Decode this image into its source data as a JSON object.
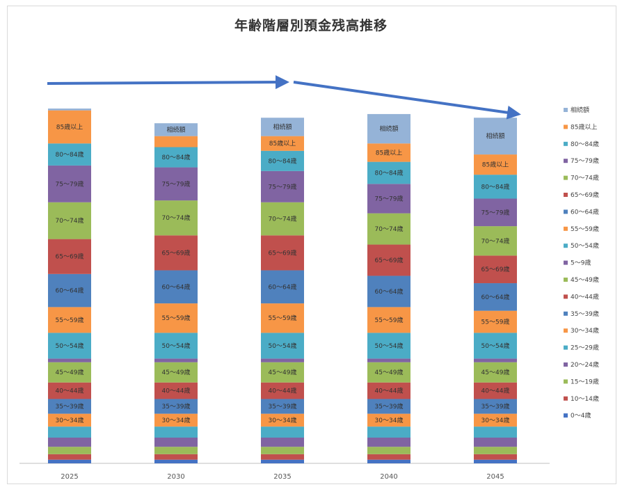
{
  "chart_data": {
    "type": "bar",
    "stacked": true,
    "title": "年齢階層別預金残高推移",
    "xlabel": "",
    "ylabel": "",
    "categories": [
      "2025",
      "2030",
      "2035",
      "2040",
      "2045"
    ],
    "grid": false,
    "legend_position": "right",
    "series": [
      {
        "name": "0～4歳",
        "color": "#4472c4",
        "values": [
          2,
          2,
          2,
          2,
          2
        ]
      },
      {
        "name": "10～14歳",
        "color": "#c0504d",
        "values": [
          3,
          3,
          3,
          3,
          3
        ]
      },
      {
        "name": "15～19歳",
        "color": "#9bbb59",
        "values": [
          4,
          4,
          4,
          4,
          4
        ]
      },
      {
        "name": "20～24歳",
        "color": "#8064a2",
        "values": [
          5,
          5,
          5,
          5,
          5
        ]
      },
      {
        "name": "25～29歳",
        "color": "#4bacc6",
        "values": [
          6,
          6,
          6,
          6,
          6
        ]
      },
      {
        "name": "30～34歳",
        "color": "#f79646",
        "values": [
          7,
          7,
          7,
          7,
          7
        ]
      },
      {
        "name": "35～39歳",
        "color": "#4f81bd",
        "values": [
          8,
          8,
          8,
          8,
          8
        ]
      },
      {
        "name": "40～44歳",
        "color": "#c0504d",
        "values": [
          9,
          9,
          9,
          9,
          9
        ]
      },
      {
        "name": "45～49歳",
        "color": "#9bbb59",
        "values": [
          11,
          11,
          11,
          11,
          11
        ]
      },
      {
        "name": "5～9歳",
        "color": "#8064a2",
        "values": [
          2,
          2,
          2,
          2,
          2
        ]
      },
      {
        "name": "50～54歳",
        "color": "#4bacc6",
        "values": [
          14,
          14,
          14,
          14,
          14
        ]
      },
      {
        "name": "55～59歳",
        "color": "#f79646",
        "values": [
          14,
          16,
          16,
          14,
          12
        ]
      },
      {
        "name": "60～64歳",
        "color": "#4f81bd",
        "values": [
          18,
          18,
          18,
          17,
          15
        ]
      },
      {
        "name": "65～69歳",
        "color": "#c0504d",
        "values": [
          19,
          19,
          19,
          17,
          15
        ]
      },
      {
        "name": "70～74歳",
        "color": "#9bbb59",
        "values": [
          20,
          19,
          18,
          17,
          16
        ]
      },
      {
        "name": "75～79歳",
        "color": "#8064a2",
        "values": [
          20,
          18,
          17,
          16,
          15
        ]
      },
      {
        "name": "80～84歳",
        "color": "#4bacc6",
        "values": [
          12,
          11,
          11,
          12,
          13
        ]
      },
      {
        "name": "85歳以上",
        "color": "#f79646",
        "values": [
          18,
          6,
          8,
          10,
          11
        ]
      },
      {
        "name": "相続額",
        "color": "#95b3d7",
        "values": [
          1,
          7,
          10,
          16,
          20
        ]
      }
    ],
    "arrows": [
      "flat",
      "decline"
    ]
  }
}
